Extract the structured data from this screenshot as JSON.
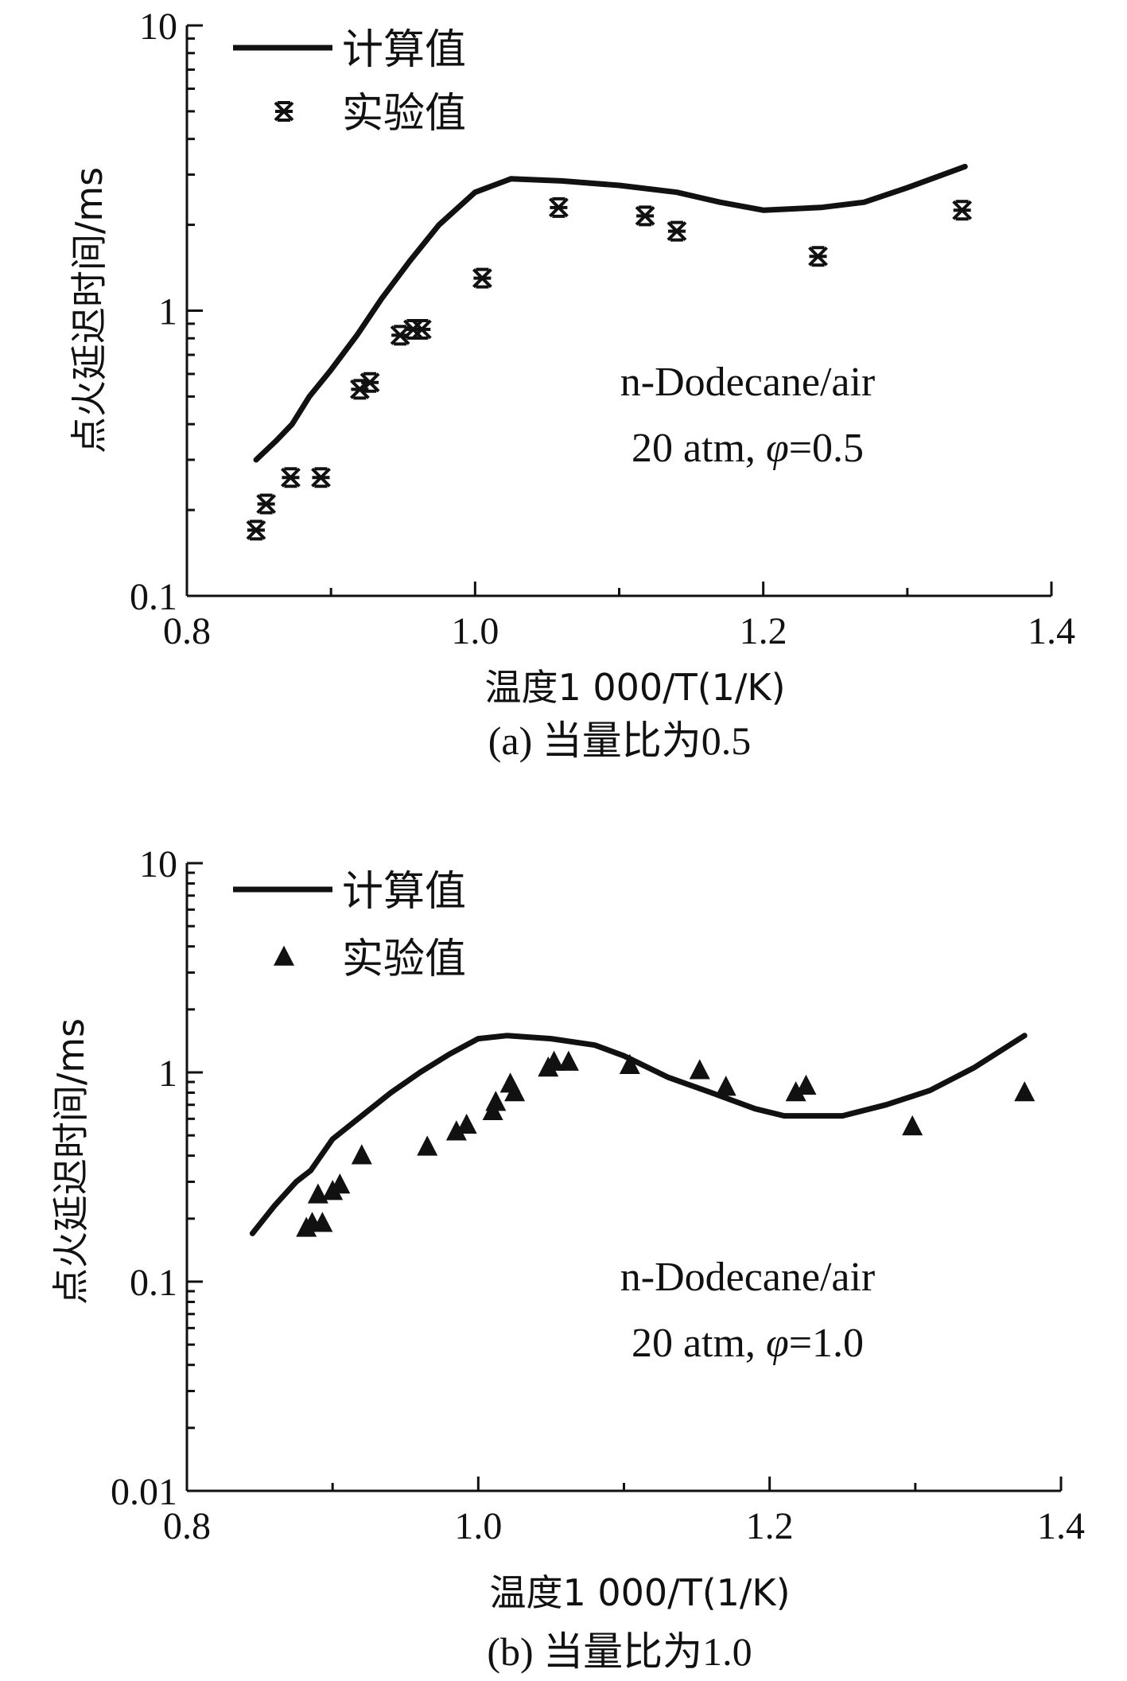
{
  "chart_data": [
    {
      "type": "line",
      "panel_id": "a",
      "caption": "(a) 当量比为0.5",
      "xlabel": "温度1 000/T(1/K)",
      "ylabel": "点火延迟时间/ms",
      "xlim": [
        0.8,
        1.4
      ],
      "ylim": [
        0.1,
        10
      ],
      "yscale": "log",
      "x_ticks": [
        0.8,
        1.0,
        1.2,
        1.4
      ],
      "x_tick_labels": [
        "0.8",
        "1.0",
        "1.2",
        "1.4"
      ],
      "y_ticks": [
        0.1,
        1,
        10
      ],
      "y_tick_labels": [
        "0.1",
        "1",
        "10"
      ],
      "grid": false,
      "legend_position": "top-left",
      "annotation": {
        "line1": "n-Dodecane/air",
        "line2_prefix": "20 atm, ",
        "phi_symbol": "φ",
        "line2_suffix": "=0.5"
      },
      "series": [
        {
          "name": "计算值",
          "kind": "line",
          "x": [
            0.848,
            0.862,
            0.873,
            0.885,
            0.9,
            0.918,
            0.935,
            0.955,
            0.975,
            1.0,
            1.025,
            1.06,
            1.1,
            1.14,
            1.17,
            1.2,
            1.24,
            1.27,
            1.3,
            1.34
          ],
          "y": [
            0.3,
            0.35,
            0.4,
            0.5,
            0.62,
            0.82,
            1.1,
            1.5,
            2.0,
            2.6,
            2.9,
            2.85,
            2.75,
            2.6,
            2.4,
            2.25,
            2.3,
            2.4,
            2.7,
            3.2
          ]
        },
        {
          "name": "实验值",
          "kind": "scatter",
          "marker": "asterisk",
          "x": [
            0.848,
            0.855,
            0.872,
            0.893,
            0.92,
            0.927,
            0.948,
            0.957,
            0.963,
            1.005,
            1.058,
            1.118,
            1.14,
            1.238,
            1.338
          ],
          "y": [
            0.17,
            0.21,
            0.26,
            0.26,
            0.53,
            0.56,
            0.82,
            0.86,
            0.86,
            1.3,
            2.3,
            2.15,
            1.9,
            1.55,
            2.25
          ]
        }
      ]
    },
    {
      "type": "line",
      "panel_id": "b",
      "caption": "(b) 当量比为1.0",
      "xlabel": "温度1 000/T(1/K)",
      "ylabel": "点火延迟时间/ms",
      "xlim": [
        0.8,
        1.4
      ],
      "ylim": [
        0.01,
        10
      ],
      "yscale": "log",
      "x_ticks": [
        0.8,
        1.0,
        1.2,
        1.4
      ],
      "x_tick_labels": [
        "0.8",
        "1.0",
        "1.2",
        "1.4"
      ],
      "y_ticks": [
        0.01,
        0.1,
        1,
        10
      ],
      "y_tick_labels": [
        "0.01",
        "0.1",
        "1",
        "10"
      ],
      "grid": false,
      "legend_position": "top-left",
      "annotation": {
        "line1": "n-Dodecane/air",
        "line2_prefix": "20 atm, ",
        "phi_symbol": "φ",
        "line2_suffix": "=1.0"
      },
      "series": [
        {
          "name": "计算值",
          "kind": "line",
          "x": [
            0.845,
            0.86,
            0.875,
            0.885,
            0.9,
            0.92,
            0.94,
            0.96,
            0.98,
            1.0,
            1.02,
            1.05,
            1.08,
            1.1,
            1.13,
            1.16,
            1.19,
            1.21,
            1.25,
            1.28,
            1.31,
            1.34,
            1.375
          ],
          "y": [
            0.17,
            0.23,
            0.3,
            0.34,
            0.48,
            0.62,
            0.8,
            1.0,
            1.22,
            1.45,
            1.5,
            1.45,
            1.35,
            1.2,
            0.95,
            0.8,
            0.67,
            0.62,
            0.62,
            0.7,
            0.82,
            1.05,
            1.5
          ]
        },
        {
          "name": "实验值",
          "kind": "scatter",
          "marker": "triangle",
          "x": [
            0.882,
            0.886,
            0.893,
            0.89,
            0.9,
            0.905,
            0.92,
            0.965,
            0.985,
            0.992,
            1.01,
            1.012,
            1.025,
            1.022,
            1.048,
            1.052,
            1.062,
            1.104,
            1.152,
            1.17,
            1.218,
            1.225,
            1.298,
            1.375
          ],
          "y": [
            0.18,
            0.19,
            0.19,
            0.26,
            0.27,
            0.29,
            0.4,
            0.44,
            0.52,
            0.56,
            0.65,
            0.72,
            0.8,
            0.88,
            1.05,
            1.12,
            1.12,
            1.08,
            1.02,
            0.85,
            0.8,
            0.86,
            0.55,
            0.8
          ]
        }
      ]
    }
  ]
}
